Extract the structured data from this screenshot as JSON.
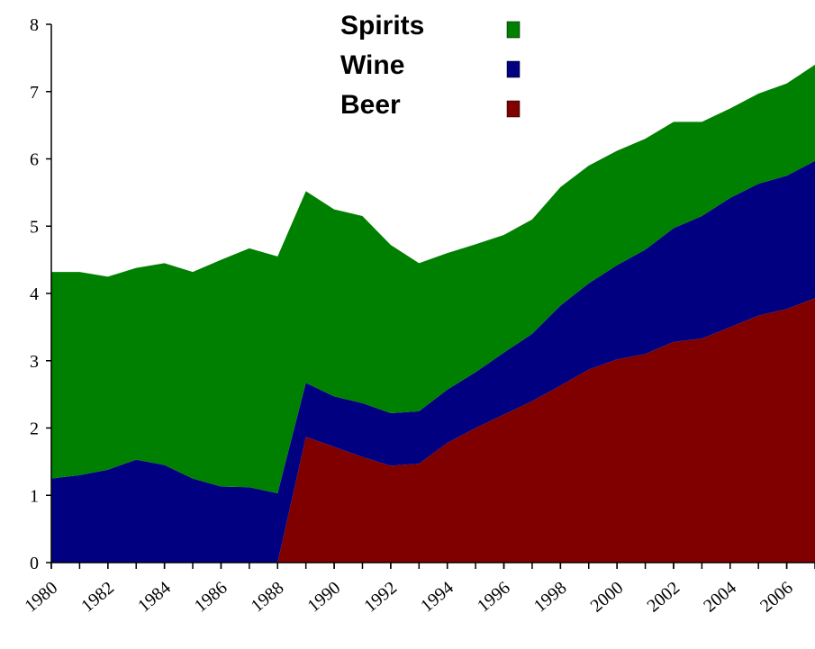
{
  "chart_data": {
    "type": "stacked_area",
    "x": [
      1980,
      1981,
      1982,
      1983,
      1984,
      1985,
      1986,
      1987,
      1988,
      1989,
      1990,
      1991,
      1992,
      1993,
      1994,
      1995,
      1996,
      1997,
      1998,
      1999,
      2000,
      2001,
      2002,
      2003,
      2004,
      2005,
      2006,
      2007
    ],
    "series": [
      {
        "name": "Beer",
        "color": "#800000",
        "values": [
          0,
          0,
          0,
          0,
          0,
          0,
          0,
          0,
          0,
          1.87,
          1.72,
          1.57,
          1.44,
          1.47,
          1.78,
          2.0,
          2.2,
          2.4,
          2.63,
          2.87,
          3.02,
          3.1,
          3.28,
          3.33,
          3.5,
          3.67,
          3.77,
          3.93
        ]
      },
      {
        "name": "Wine",
        "color": "#000080",
        "values": [
          1.25,
          1.3,
          1.38,
          1.53,
          1.45,
          1.25,
          1.13,
          1.12,
          1.03,
          0.8,
          0.75,
          0.8,
          0.78,
          0.78,
          0.79,
          0.83,
          0.92,
          1.0,
          1.19,
          1.28,
          1.4,
          1.55,
          1.69,
          1.82,
          1.92,
          1.96,
          1.98,
          2.04
        ]
      },
      {
        "name": "Spirits",
        "color": "#008000",
        "values": [
          3.07,
          3.02,
          2.87,
          2.85,
          3.0,
          3.07,
          3.37,
          3.55,
          3.52,
          2.85,
          2.78,
          2.78,
          2.5,
          2.2,
          2.03,
          1.9,
          1.75,
          1.7,
          1.76,
          1.75,
          1.7,
          1.65,
          1.58,
          1.4,
          1.33,
          1.34,
          1.37,
          1.43
        ]
      }
    ],
    "xlim": [
      1980,
      2007
    ],
    "xticks": [
      1980,
      1982,
      1984,
      1986,
      1988,
      1990,
      1992,
      1994,
      1996,
      1998,
      2000,
      2002,
      2004,
      2006
    ],
    "ylim": [
      0,
      8
    ],
    "yticks": [
      0,
      1,
      2,
      3,
      4,
      5,
      6,
      7,
      8
    ]
  }
}
